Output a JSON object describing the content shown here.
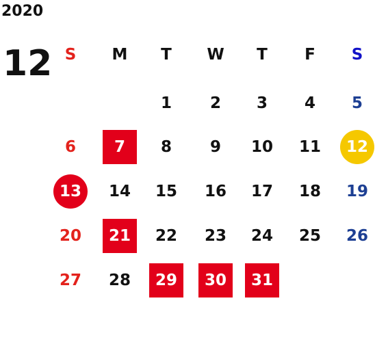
{
  "year": "2020",
  "month": "12",
  "weekdays": [
    {
      "text": "S",
      "color": "#e3221c"
    },
    {
      "text": "M",
      "color": "#111111"
    },
    {
      "text": "T",
      "color": "#111111"
    },
    {
      "text": "W",
      "color": "#111111"
    },
    {
      "text": "T",
      "color": "#111111"
    },
    {
      "text": "F",
      "color": "#111111"
    },
    {
      "text": "S",
      "color": "#1212c8"
    }
  ],
  "date_colors": [
    "#e3221c",
    "#111111",
    "#111111",
    "#111111",
    "#111111",
    "#111111",
    "#1d3f93"
  ],
  "weeks": [
    [
      null,
      null,
      1,
      2,
      3,
      4,
      5
    ],
    [
      6,
      {
        "text": 7,
        "shape": "square",
        "color": "#e2001a"
      },
      8,
      9,
      10,
      11,
      {
        "text": 12,
        "shape": "circle",
        "color": "#f5c800"
      }
    ],
    [
      {
        "text": 13,
        "shape": "circle",
        "color": "#e2001a"
      },
      14,
      15,
      16,
      17,
      18,
      19
    ],
    [
      20,
      {
        "text": 21,
        "shape": "square",
        "color": "#e2001a"
      },
      22,
      23,
      24,
      25,
      26
    ],
    [
      27,
      28,
      {
        "text": 29,
        "shape": "square",
        "color": "#e2001a"
      },
      {
        "text": 30,
        "shape": "square",
        "color": "#e2001a"
      },
      {
        "text": 31,
        "shape": "square",
        "color": "#e2001a"
      },
      null,
      null
    ]
  ]
}
